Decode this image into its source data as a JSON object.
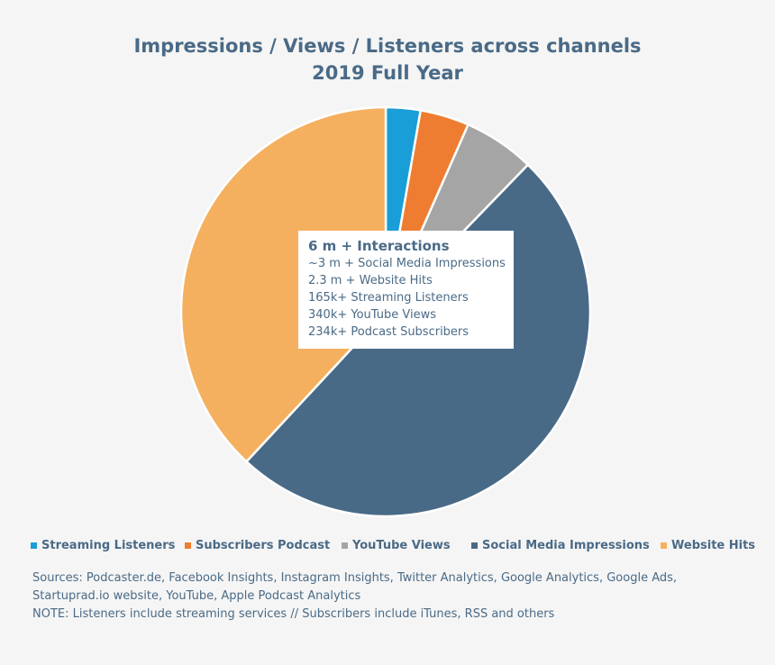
{
  "chart_data": {
    "type": "pie",
    "title": "Impressions / Views / Listeners across channels",
    "subtitle": "2019 Full Year",
    "slices": [
      {
        "name": "Streaming Listeners",
        "value": 165,
        "color": "#1a9ed8"
      },
      {
        "name": "Subscribers Podcast",
        "value": 234,
        "color": "#ee7d31"
      },
      {
        "name": "YouTube Views",
        "value": 340,
        "color": "#a5a5a5"
      },
      {
        "name": "Social Media Impressions",
        "value": 3000,
        "color": "#496a87"
      },
      {
        "name": "Website Hits",
        "value": 2300,
        "color": "#f4b05f"
      }
    ],
    "legend_position": "bottom",
    "annotation": {
      "heading": "6 m + Interactions",
      "lines": [
        "~3 m + Social Media Impressions",
        "2.3 m + Website Hits",
        "165k+ Streaming Listeners",
        "340k+ YouTube Views",
        "234k+ Podcast Subscribers"
      ]
    }
  },
  "footer": {
    "lines": [
      "Sources: Podcaster.de, Facebook Insights, Instagram Insights, Twitter Analytics, Google Analytics, Google Ads,",
      "Startuprad.io website, YouTube, Apple Podcast Analytics",
      "NOTE: Listeners include streaming services // Subscribers include iTunes, RSS and others"
    ]
  }
}
